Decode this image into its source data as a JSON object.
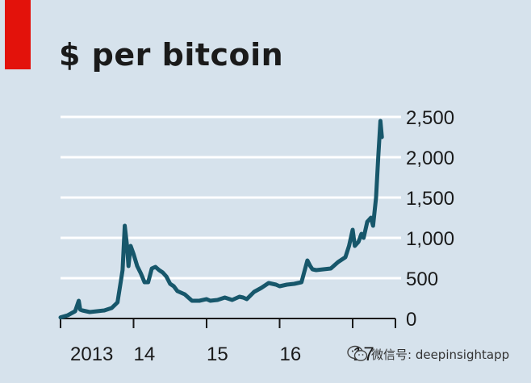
{
  "chart_data": {
    "type": "line",
    "title": "$ per bitcoin",
    "xlabel": "",
    "ylabel": "",
    "ylim": [
      0,
      2500
    ],
    "yticks": [
      0,
      500,
      1000,
      1500,
      2000,
      2500
    ],
    "ytick_labels": [
      "0",
      "500",
      "1,000",
      "1,500",
      "2,000",
      "2,500"
    ],
    "xlim": [
      2013.0,
      2017.42
    ],
    "xticks": [
      2013,
      2014,
      2015,
      2016,
      2017
    ],
    "xtick_labels": [
      "2013",
      "14",
      "15",
      "16",
      "17"
    ],
    "grid": true,
    "series": [
      {
        "color": "#17576b",
        "x": [
          2013.0,
          2013.1,
          2013.2,
          2013.25,
          2013.27,
          2013.3,
          2013.4,
          2013.5,
          2013.6,
          2013.7,
          2013.78,
          2013.85,
          2013.88,
          2013.91,
          2013.93,
          2013.96,
          2014.0,
          2014.05,
          2014.1,
          2014.15,
          2014.2,
          2014.25,
          2014.3,
          2014.35,
          2014.4,
          2014.45,
          2014.5,
          2014.55,
          2014.6,
          2014.7,
          2014.8,
          2014.9,
          2015.0,
          2015.05,
          2015.15,
          2015.25,
          2015.35,
          2015.45,
          2015.5,
          2015.55,
          2015.65,
          2015.75,
          2015.85,
          2015.95,
          2016.0,
          2016.1,
          2016.2,
          2016.3,
          2016.38,
          2016.42,
          2016.45,
          2016.5,
          2016.6,
          2016.7,
          2016.8,
          2016.9,
          2016.95,
          2017.0,
          2017.03,
          2017.08,
          2017.12,
          2017.15,
          2017.2,
          2017.25,
          2017.28,
          2017.32,
          2017.35,
          2017.38,
          2017.4
        ],
        "values": [
          13,
          40,
          90,
          220,
          110,
          100,
          80,
          90,
          100,
          130,
          200,
          600,
          1150,
          900,
          650,
          900,
          800,
          650,
          560,
          450,
          450,
          620,
          640,
          600,
          570,
          520,
          430,
          400,
          340,
          300,
          220,
          220,
          240,
          220,
          230,
          260,
          230,
          270,
          260,
          240,
          330,
          380,
          440,
          420,
          400,
          420,
          430,
          450,
          720,
          650,
          610,
          600,
          610,
          620,
          700,
          760,
          900,
          1100,
          900,
          950,
          1050,
          1000,
          1200,
          1250,
          1150,
          1500,
          2000,
          2450,
          2250
        ]
      }
    ]
  },
  "watermark": {
    "label": "微信号: deepinsightapp",
    "icon": "wechat-icon"
  }
}
